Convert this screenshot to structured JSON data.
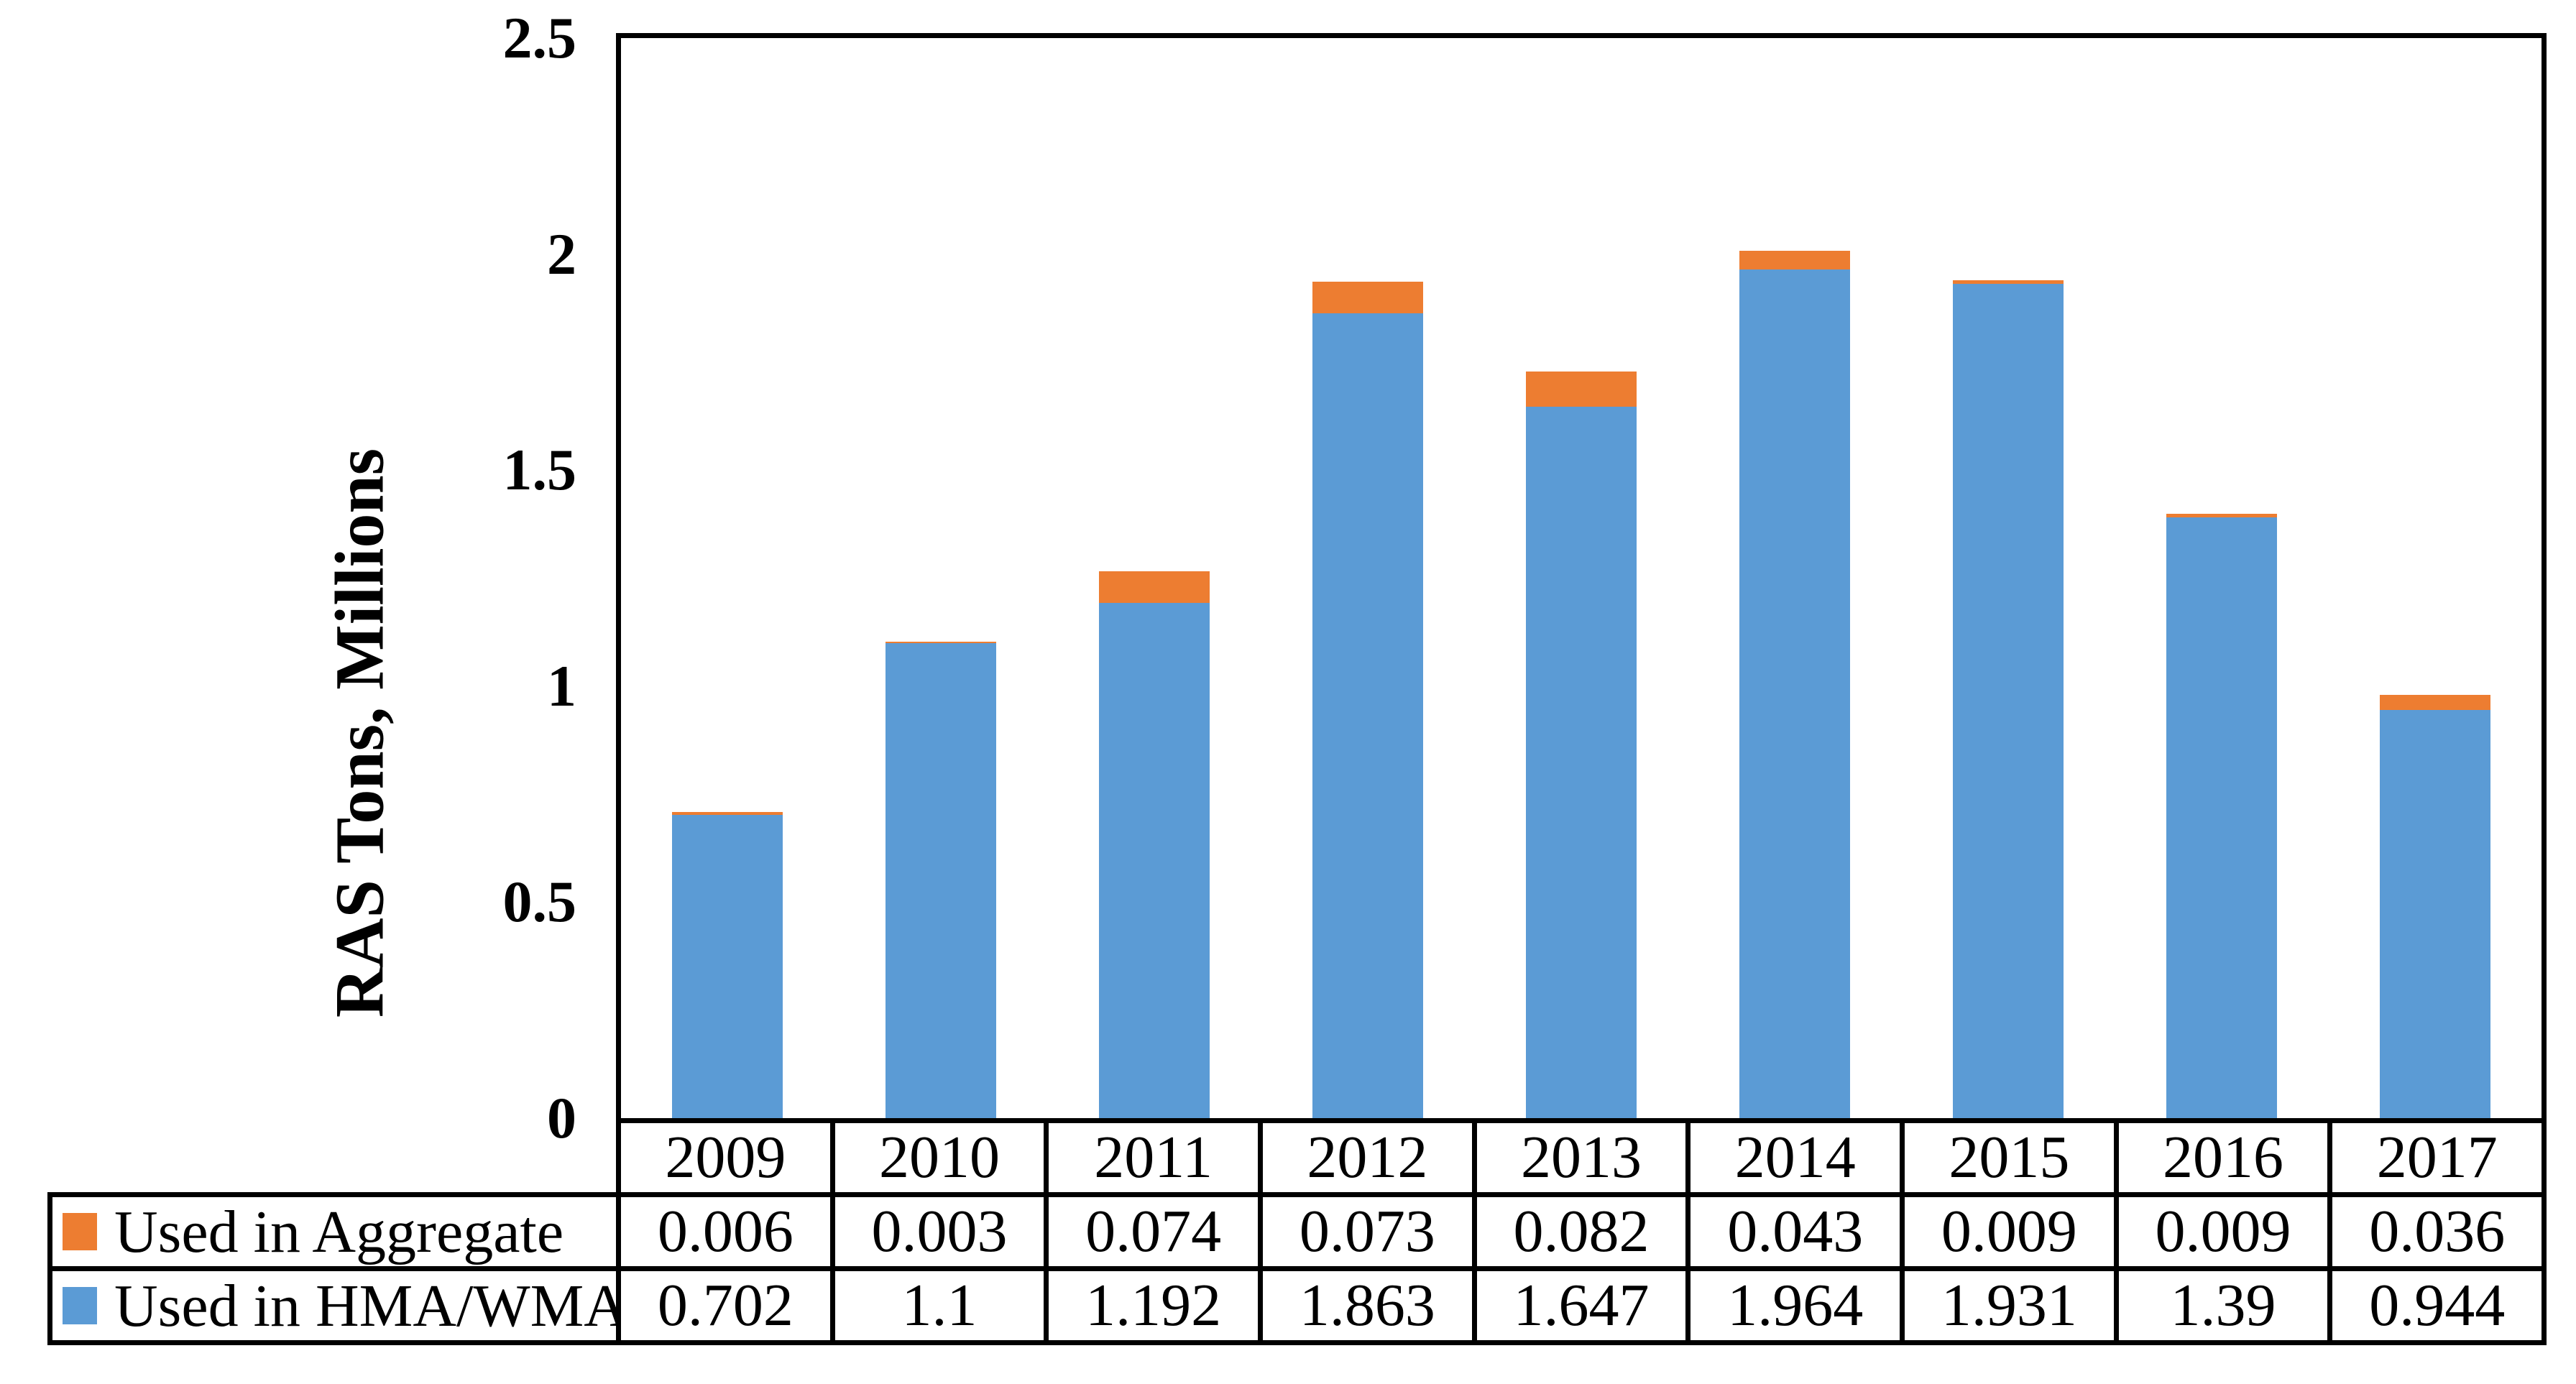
{
  "chart_data": {
    "type": "bar",
    "stacked": true,
    "title": "",
    "xlabel": "",
    "ylabel": "RAS Tons, Millions",
    "categories": [
      "2009",
      "2010",
      "2011",
      "2012",
      "2013",
      "2014",
      "2015",
      "2016",
      "2017"
    ],
    "series": [
      {
        "name": "Used in Aggregate",
        "color": "#ED7D31",
        "values": [
          0.006,
          0.003,
          0.074,
          0.073,
          0.082,
          0.043,
          0.009,
          0.009,
          0.036
        ]
      },
      {
        "name": "Used in HMA/WMA",
        "color": "#5B9BD5",
        "values": [
          0.702,
          1.1,
          1.192,
          1.863,
          1.647,
          1.964,
          1.931,
          1.39,
          0.944
        ]
      }
    ],
    "stack_order_bottom_to_top": [
      "Used in HMA/WMA",
      "Used in Aggregate"
    ],
    "ylim": [
      0,
      2.5
    ],
    "y_ticks": [
      2.5,
      2,
      1.5,
      1,
      0.5,
      0
    ],
    "y_tick_labels": [
      "2.5",
      "2",
      "1.5",
      "1",
      "0.5",
      "0"
    ],
    "grid": false,
    "legend_position": "data-table-left",
    "axis_color": "#000000",
    "text_color": "#000000",
    "bar_color_hma": "#5B9BD5",
    "bar_color_aggregate": "#ED7D31"
  }
}
